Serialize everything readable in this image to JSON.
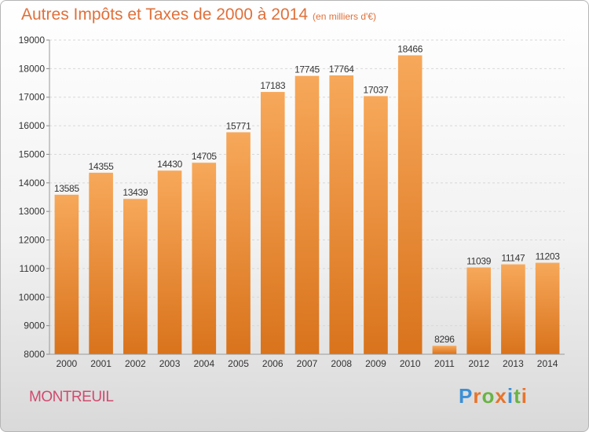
{
  "title": "Autres Impôts et Taxes de 2000 à 2014",
  "subtitle": "(en milliers d'€)",
  "city": "MONTREUIL",
  "logo": {
    "text": "Proxiti",
    "colors": [
      "#3c8fd6",
      "#e8742a",
      "#6ab344",
      "#e8742a",
      "#3c8fd6",
      "#6ab344",
      "#e8742a"
    ]
  },
  "colors": {
    "bar_top": "#f7a85a",
    "bar_bottom": "#d9731c",
    "title": "#e0703a",
    "city": "#d04a6e"
  },
  "chart_data": {
    "type": "bar",
    "categories": [
      "2000",
      "2001",
      "2002",
      "2003",
      "2004",
      "2005",
      "2006",
      "2007",
      "2008",
      "2009",
      "2010",
      "2011",
      "2012",
      "2013",
      "2014"
    ],
    "values": [
      13585,
      14355,
      13439,
      14430,
      14705,
      15771,
      17183,
      17745,
      17764,
      17037,
      18466,
      8296,
      11039,
      11147,
      11203
    ],
    "ylim": [
      8000,
      19000
    ],
    "yticks": [
      8000,
      9000,
      10000,
      11000,
      12000,
      13000,
      14000,
      15000,
      16000,
      17000,
      18000,
      19000
    ],
    "grid": true
  }
}
